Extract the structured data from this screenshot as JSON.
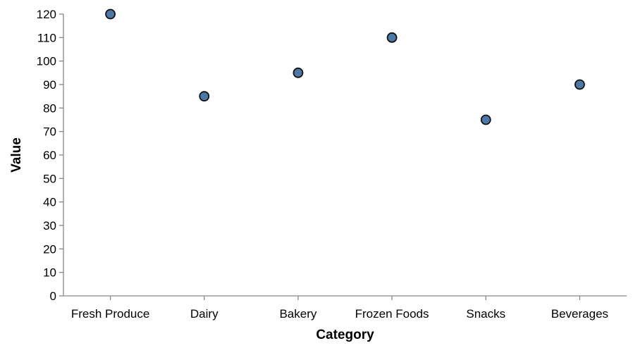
{
  "chart_data": {
    "type": "scatter",
    "categories": [
      "Fresh Produce",
      "Dairy",
      "Bakery",
      "Frozen Foods",
      "Snacks",
      "Beverages"
    ],
    "values": [
      120,
      85,
      95,
      110,
      75,
      90
    ],
    "xlabel": "Category",
    "ylabel": "Value",
    "ylim": [
      0,
      120
    ],
    "yticks": [
      0,
      10,
      20,
      30,
      40,
      50,
      60,
      70,
      80,
      90,
      100,
      110,
      120
    ],
    "grid": false,
    "point_color": "#4c78a8",
    "point_stroke": "#111111"
  }
}
